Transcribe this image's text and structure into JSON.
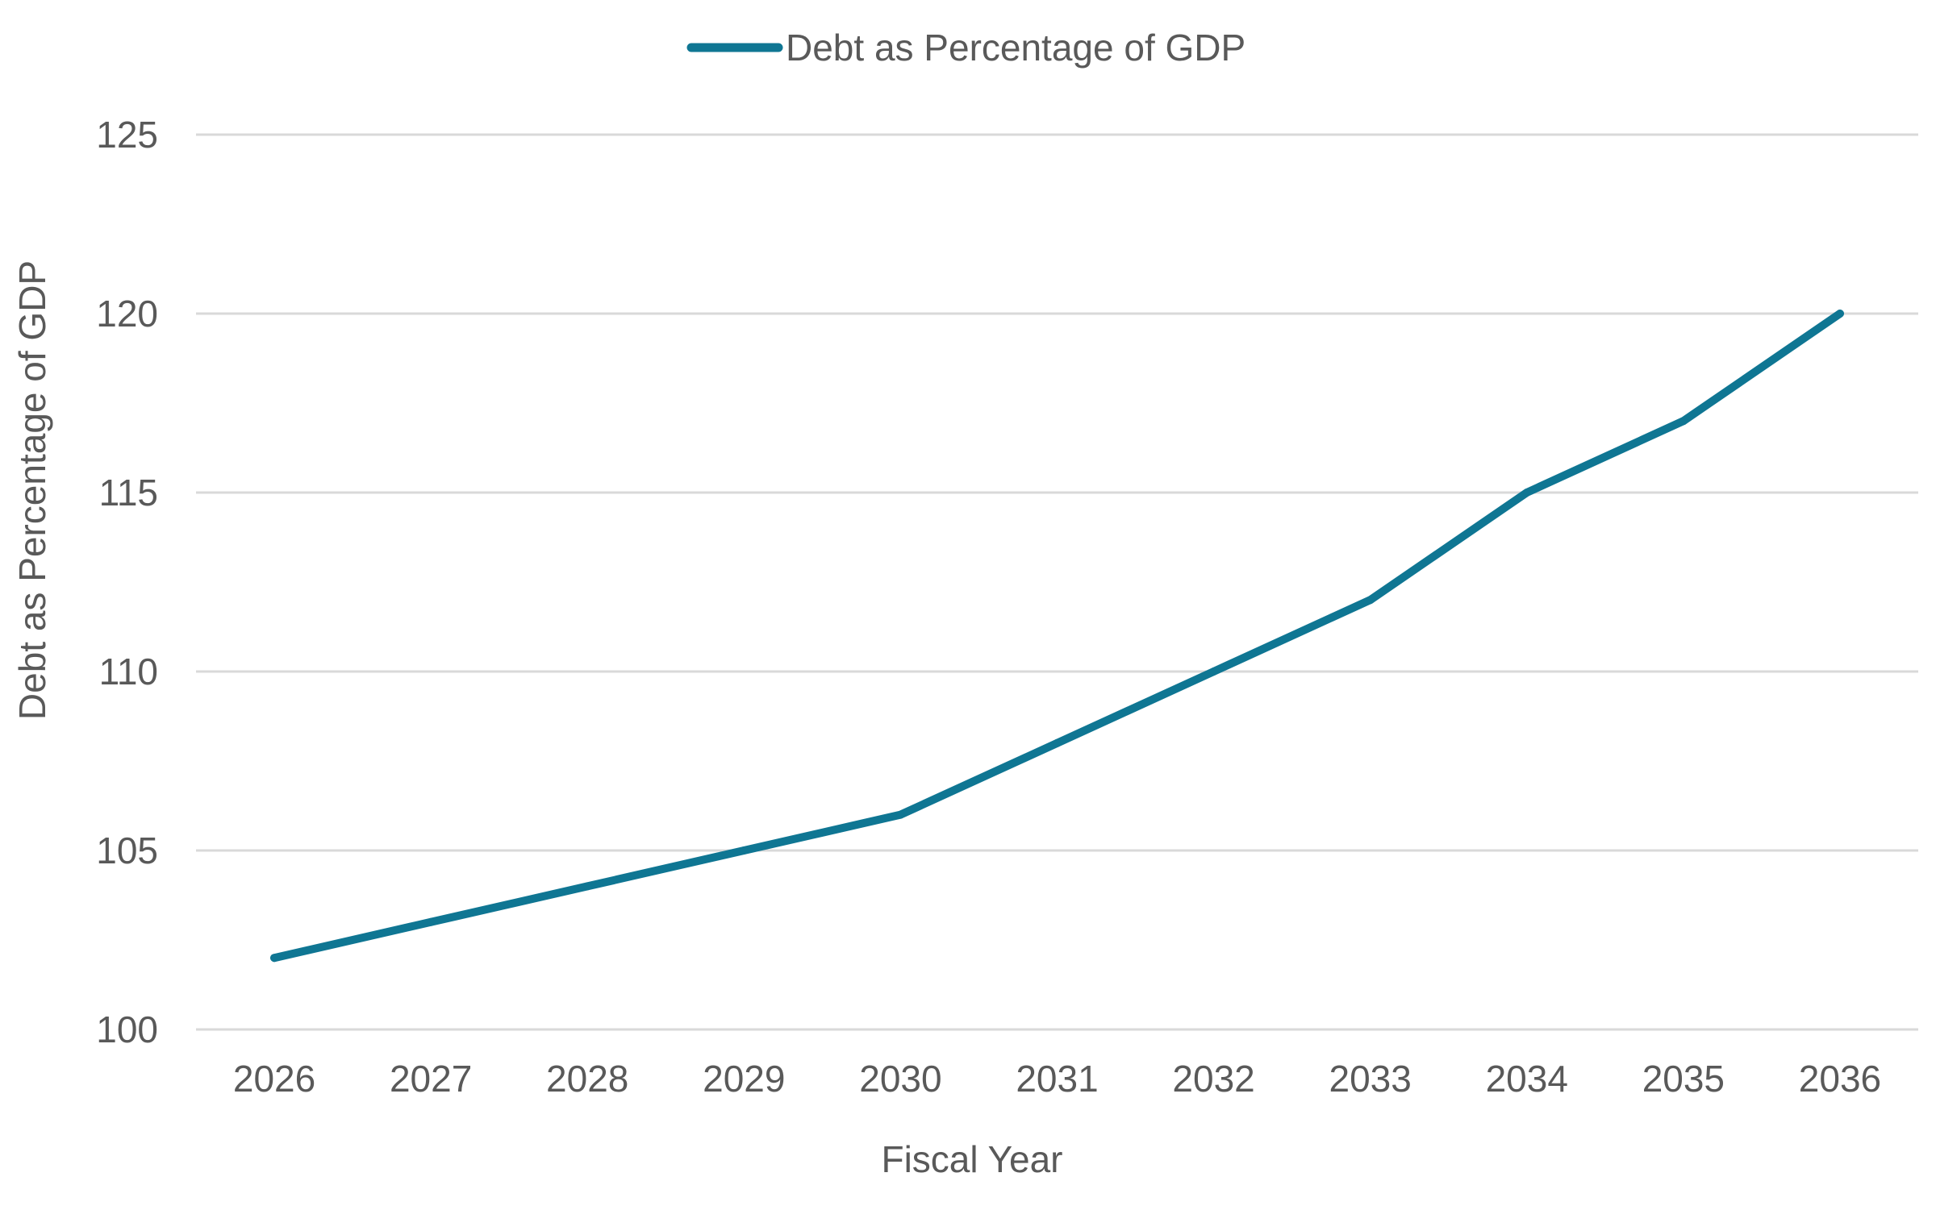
{
  "chart_data": {
    "type": "line",
    "title": "",
    "xlabel": "Fiscal Year",
    "ylabel": "Debt as Percentage of GDP",
    "categories": [
      "2026",
      "2027",
      "2028",
      "2029",
      "2030",
      "2031",
      "2032",
      "2033",
      "2034",
      "2035",
      "2036"
    ],
    "series": [
      {
        "name": "Debt as Percentage of GDP",
        "color": "#0F7693",
        "values": [
          102,
          103,
          104,
          105,
          106,
          108,
          110,
          112,
          115,
          117,
          120
        ]
      }
    ],
    "ylim": [
      100,
      125
    ],
    "yticks": [
      "100",
      "105",
      "110",
      "115",
      "120",
      "125"
    ],
    "grid": true,
    "gridline_color": "#D9D9D9",
    "legend_position": "top-center"
  }
}
